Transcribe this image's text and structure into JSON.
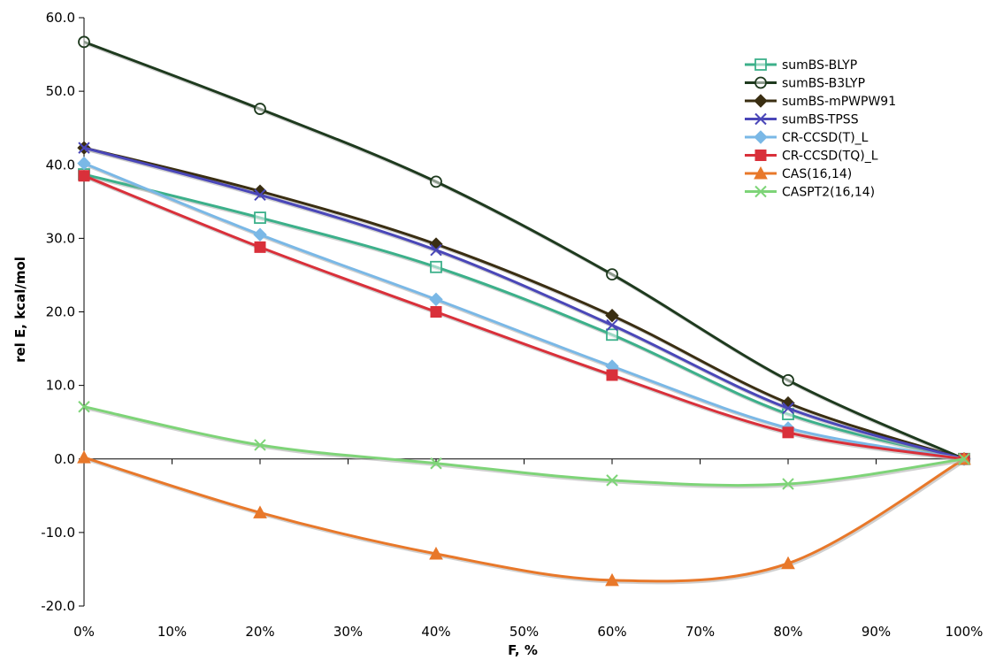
{
  "chart_data": {
    "type": "line",
    "title": "",
    "xlabel": "F, %",
    "ylabel": "rel E, kcal/mol",
    "x": [
      0,
      20,
      40,
      60,
      80,
      100
    ],
    "x_tick_values": [
      0,
      10,
      20,
      30,
      40,
      50,
      60,
      70,
      80,
      90,
      100
    ],
    "x_tick_labels": [
      "0%",
      "10%",
      "20%",
      "30%",
      "40%",
      "50%",
      "60%",
      "70%",
      "80%",
      "90%",
      "100%"
    ],
    "xlim": [
      0,
      100
    ],
    "y_tick_values": [
      -20,
      -10,
      0,
      10,
      20,
      30,
      40,
      50,
      60
    ],
    "y_tick_labels": [
      "-20.0",
      "-10.0",
      "0.0",
      "10.0",
      "20.0",
      "30.0",
      "40.0",
      "50.0",
      "60.0"
    ],
    "ylim": [
      -20,
      60
    ],
    "grid": false,
    "legend_position": "top-right",
    "series": [
      {
        "name": "sumBS-BLYP",
        "values": [
          38.7,
          32.8,
          26.1,
          16.9,
          6.1,
          0
        ],
        "color": "#3cb08a",
        "marker": "square-open"
      },
      {
        "name": "sumBS-B3LYP",
        "values": [
          56.7,
          47.6,
          37.7,
          25.1,
          10.7,
          0
        ],
        "color": "#1e3a1e",
        "marker": "circle-open"
      },
      {
        "name": "sumBS-mPWPW91",
        "values": [
          42.3,
          36.4,
          29.2,
          19.5,
          7.6,
          0
        ],
        "color": "#3a2e12",
        "marker": "diamond"
      },
      {
        "name": "sumBS-TPSS",
        "values": [
          42.3,
          35.9,
          28.4,
          18.2,
          6.9,
          0
        ],
        "color": "#4a47b8",
        "marker": "x"
      },
      {
        "name": "CR-CCSD(T)_L",
        "values": [
          40.2,
          30.5,
          21.7,
          12.6,
          4.2,
          0
        ],
        "color": "#7ab8e6",
        "marker": "diamond"
      },
      {
        "name": "CR-CCSD(TQ)_L",
        "values": [
          38.5,
          28.8,
          20.0,
          11.4,
          3.6,
          0
        ],
        "color": "#d9303a",
        "marker": "square"
      },
      {
        "name": "CAS(16,14)",
        "values": [
          0.2,
          -7.3,
          -12.9,
          -16.5,
          -14.2,
          0
        ],
        "color": "#e8782a",
        "marker": "triangle"
      },
      {
        "name": "CASPT2(16,14)",
        "values": [
          7.1,
          1.9,
          -0.6,
          -2.9,
          -3.4,
          0
        ],
        "color": "#7ed478",
        "marker": "x"
      }
    ]
  }
}
